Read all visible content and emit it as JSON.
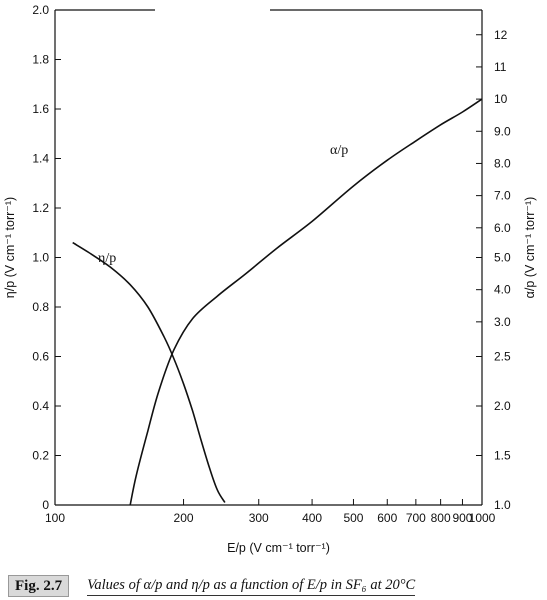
{
  "chart_data": {
    "type": "line",
    "title": "",
    "xlabel": "E/p (V cm⁻¹ torr⁻¹)",
    "ylabel_left": "η/p (V cm⁻¹ torr⁻¹)",
    "ylabel_right": "α/p (V cm⁻¹ torr⁻¹)",
    "x_scale": "log",
    "xlim": [
      100,
      1000
    ],
    "x_ticks": [
      100,
      200,
      300,
      400,
      500,
      600,
      700,
      800,
      900,
      1000
    ],
    "x_tick_labels": [
      "100",
      "200",
      "300",
      "400",
      "500",
      "600",
      "700",
      "800",
      "900",
      "1000"
    ],
    "ylim_left": [
      0,
      2.0
    ],
    "y_left_ticks": [
      0,
      0.2,
      0.4,
      0.6,
      0.8,
      1.0,
      1.2,
      1.4,
      1.6,
      1.8,
      2.0
    ],
    "y_left_tick_labels": [
      "0",
      "0.2",
      "0.4",
      "0.6",
      "0.8",
      "1.0",
      "1.2",
      "1.4",
      "1.6",
      "1.8",
      "2.0"
    ],
    "y_right_scale": "nonuniform",
    "y_right_ticks": [
      1.0,
      1.5,
      2.0,
      2.5,
      3.0,
      4.0,
      5.0,
      6.0,
      7.0,
      8.0,
      9.0,
      10,
      11,
      12
    ],
    "y_right_tick_labels": [
      "1.0",
      "1.5",
      "2.0",
      "2.5",
      "3.0",
      "4.0",
      "5.0",
      "6.0",
      "7.0",
      "8.0",
      "9.0",
      "10",
      "11",
      "12"
    ],
    "y_right_tick_left_equiv": [
      0.0,
      0.2,
      0.4,
      0.6,
      0.74,
      0.87,
      1.0,
      1.12,
      1.25,
      1.38,
      1.51,
      1.64,
      1.77,
      1.9
    ],
    "grid": false,
    "series": [
      {
        "name": "η/p",
        "axis": "left",
        "x": [
          110,
          120,
          135,
          150,
          165,
          180,
          190,
          200,
          210,
          220,
          230,
          240,
          250
        ],
        "y": [
          1.06,
          1.02,
          0.96,
          0.89,
          0.8,
          0.68,
          0.59,
          0.49,
          0.38,
          0.26,
          0.15,
          0.06,
          0.01
        ]
      },
      {
        "name": "α/p",
        "axis": "right",
        "x": [
          150,
          155,
          165,
          175,
          190,
          210,
          240,
          280,
          330,
          400,
          500,
          600,
          700,
          800,
          900,
          1000
        ],
        "y": [
          1.0,
          1.3,
          1.75,
          2.15,
          2.6,
          3.1,
          3.8,
          4.5,
          5.3,
          6.2,
          7.3,
          8.1,
          8.7,
          9.2,
          9.6,
          10.0
        ]
      }
    ]
  },
  "caption": {
    "figure_number": "Fig. 2.7",
    "text": "Values of α/p and η/p as a function of E/p in SF₆ at 20°C"
  }
}
